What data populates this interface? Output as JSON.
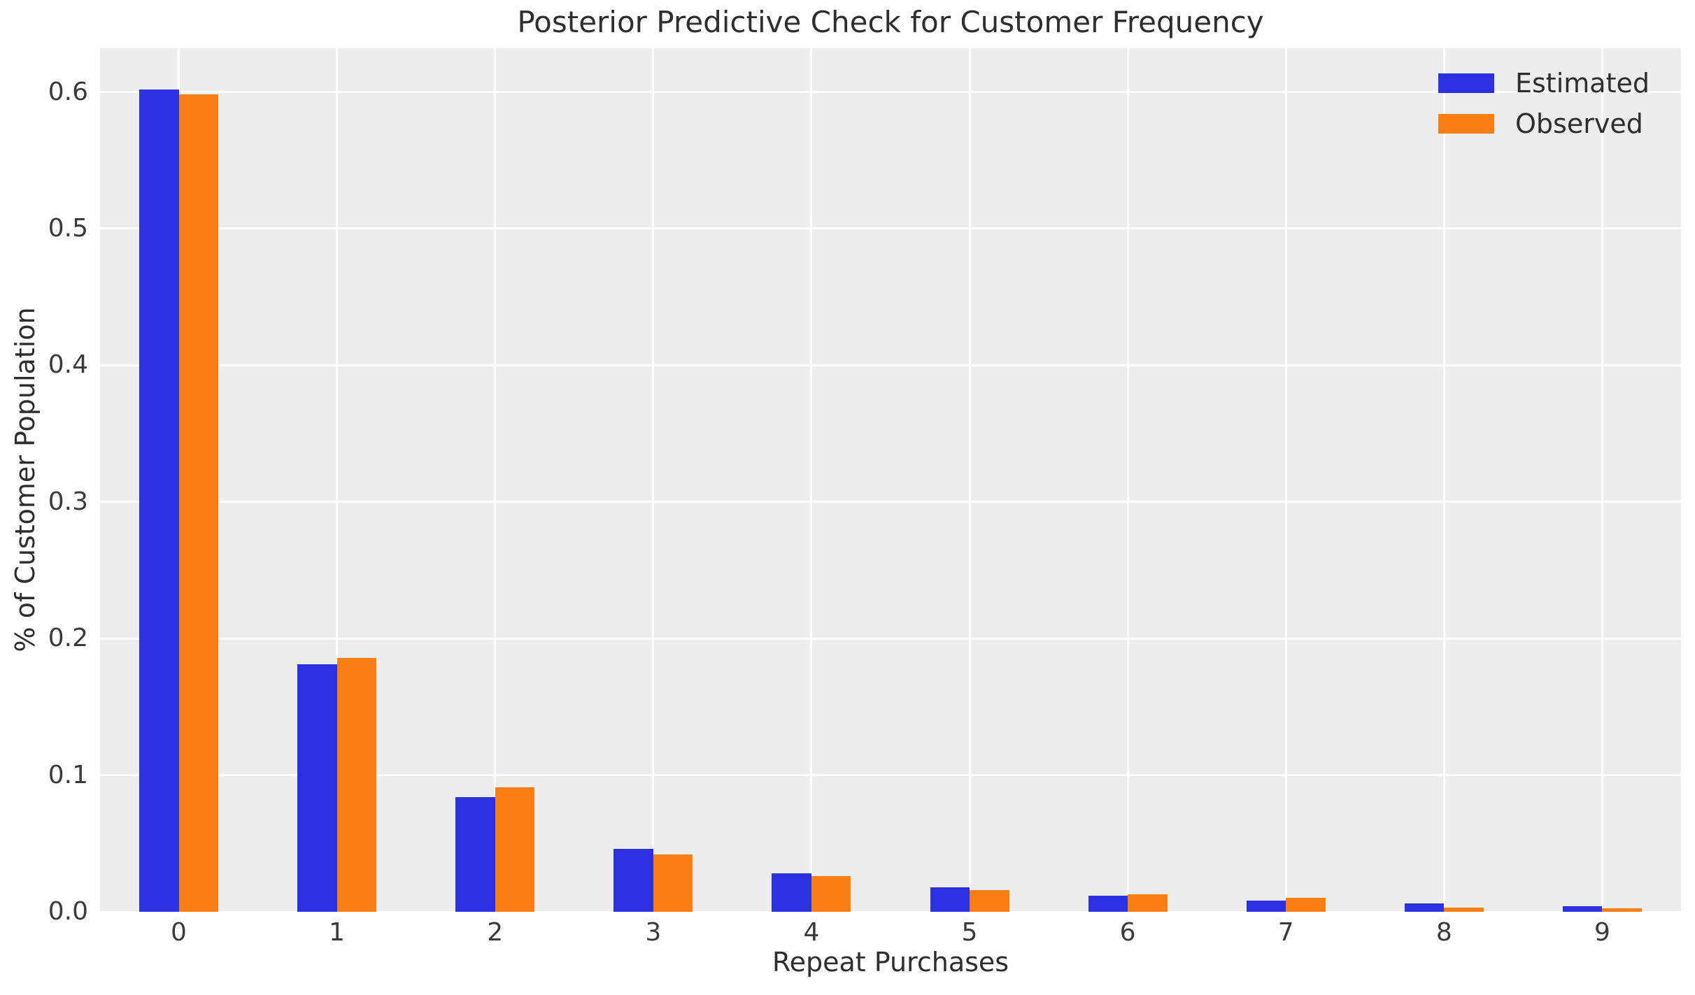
{
  "chart_data": {
    "type": "bar",
    "title": "Posterior Predictive Check for Customer Frequency",
    "xlabel": "Repeat Purchases",
    "ylabel": "% of Customer Population",
    "categories": [
      "0",
      "1",
      "2",
      "3",
      "4",
      "5",
      "6",
      "7",
      "8",
      "9"
    ],
    "series": [
      {
        "name": "Estimated",
        "color": "#2b30e0",
        "values": [
          0.602,
          0.181,
          0.084,
          0.046,
          0.028,
          0.018,
          0.012,
          0.008,
          0.006,
          0.004
        ]
      },
      {
        "name": "Observed",
        "color": "#f97e14",
        "values": [
          0.598,
          0.186,
          0.091,
          0.042,
          0.026,
          0.016,
          0.013,
          0.01,
          0.003,
          0.0025
        ]
      }
    ],
    "yticks": [
      "0.0",
      "0.1",
      "0.2",
      "0.3",
      "0.4",
      "0.5",
      "0.6"
    ],
    "ylim": [
      0,
      0.632
    ],
    "legend_position": "upper right",
    "grid": true,
    "plot_bg_color": "#ededed",
    "grid_color": "#ffffff"
  }
}
